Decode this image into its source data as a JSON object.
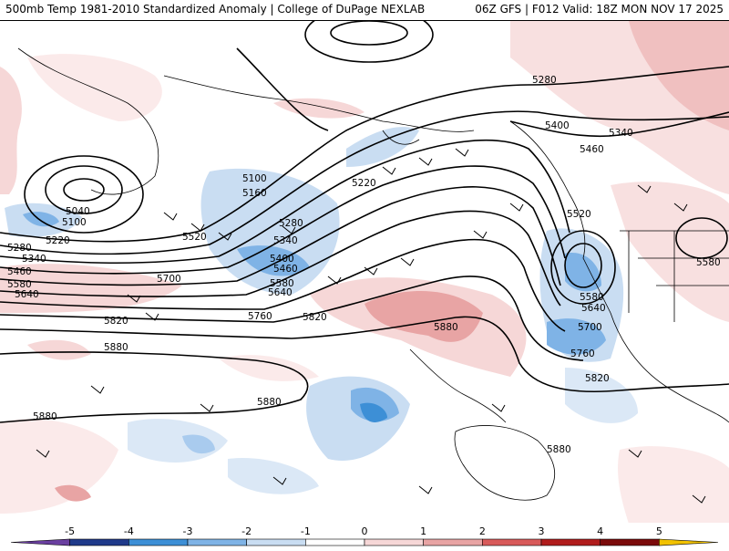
{
  "header": {
    "left_title": "500mb Temp 1981-2010 Standardized Anomaly | College of DuPage NEXLAB",
    "right_title": "06Z GFS | F012 Valid: 18Z MON NOV 17 2025"
  },
  "colorbar": {
    "ticks": [
      "-5",
      "-4",
      "-3",
      "-2",
      "-1",
      "0",
      "1",
      "2",
      "3",
      "4",
      "5"
    ],
    "colors": [
      "#6a3fa0",
      "#1f3a8a",
      "#3d8fd6",
      "#7fb3e6",
      "#c9ddf2",
      "#ffffff",
      "#f6d7d7",
      "#e8a4a4",
      "#d85a5a",
      "#b01c1c",
      "#7a0a0a",
      "#f2c200"
    ]
  },
  "height_labels": [
    "5040",
    "5100",
    "5220",
    "5280",
    "5340",
    "5460",
    "5580",
    "5640",
    "5100",
    "5160",
    "5280",
    "5340",
    "5400",
    "5460",
    "5580",
    "5640",
    "5520",
    "5700",
    "5760",
    "5820",
    "5880",
    "5880",
    "5220",
    "5280",
    "5400",
    "5460",
    "5340",
    "5520",
    "5580",
    "5640",
    "5700",
    "5760",
    "5820",
    "5880",
    "5880",
    "5580"
  ]
}
